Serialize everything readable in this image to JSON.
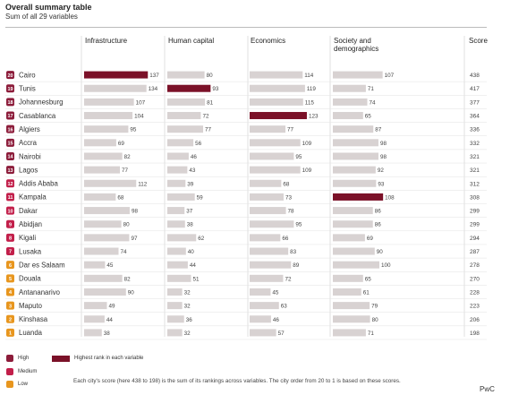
{
  "title": "Overall summary table",
  "subtitle": "Sum of all 29 variables",
  "source": "PwC",
  "note": "Each city's score (here 438 to 198) is the sum of its rankings across variables. The city order from 20 to 1 is based on these scores.",
  "legend": {
    "ranks": [
      {
        "label": "High",
        "color": "#8c1c3a"
      },
      {
        "label": "Medium",
        "color": "#c21f4a"
      },
      {
        "label": "Low",
        "color": "#e8961e"
      }
    ],
    "highlight": {
      "label": "Highest rank in each variable",
      "color": "#7b1128"
    }
  },
  "colors": {
    "bar": "#d8d2d2",
    "highlight": "#7b1128"
  },
  "chart_data": {
    "type": "table",
    "columns": [
      "Infrastructure",
      "Human capital",
      "Economics",
      "Society and demographics"
    ],
    "score_label": "Score",
    "rows": [
      {
        "rank": "20",
        "tier": "High",
        "city": "Cairo",
        "values": [
          137,
          80,
          114,
          107
        ],
        "score": 438,
        "highlight": 0
      },
      {
        "rank": "19",
        "tier": "High",
        "city": "Tunis",
        "values": [
          134,
          93,
          119,
          71
        ],
        "score": 417,
        "highlight": 1
      },
      {
        "rank": "18",
        "tier": "High",
        "city": "Johannesburg",
        "values": [
          107,
          81,
          115,
          74
        ],
        "score": 377,
        "highlight": null
      },
      {
        "rank": "17",
        "tier": "High",
        "city": "Casablanca",
        "values": [
          104,
          72,
          123,
          65
        ],
        "score": 364,
        "highlight": 2
      },
      {
        "rank": "16",
        "tier": "High",
        "city": "Algiers",
        "values": [
          95,
          77,
          77,
          87
        ],
        "score": 336,
        "highlight": null
      },
      {
        "rank": "15",
        "tier": "High",
        "city": "Accra",
        "values": [
          69,
          56,
          109,
          98
        ],
        "score": 332,
        "highlight": null
      },
      {
        "rank": "14",
        "tier": "High",
        "city": "Nairobi",
        "values": [
          82,
          46,
          95,
          98
        ],
        "score": 321,
        "highlight": null
      },
      {
        "rank": "13",
        "tier": "High",
        "city": "Lagos",
        "values": [
          77,
          43,
          109,
          92
        ],
        "score": 321,
        "highlight": null
      },
      {
        "rank": "12",
        "tier": "Medium",
        "city": "Addis Ababa",
        "values": [
          112,
          39,
          68,
          93
        ],
        "score": 312,
        "highlight": null
      },
      {
        "rank": "11",
        "tier": "Medium",
        "city": "Kampala",
        "values": [
          68,
          59,
          73,
          108
        ],
        "score": 308,
        "highlight": 3
      },
      {
        "rank": "10",
        "tier": "Medium",
        "city": "Dakar",
        "values": [
          98,
          37,
          78,
          86
        ],
        "score": 299,
        "highlight": null
      },
      {
        "rank": "9",
        "tier": "Medium",
        "city": "Abidjan",
        "values": [
          80,
          38,
          95,
          86
        ],
        "score": 299,
        "highlight": null
      },
      {
        "rank": "8",
        "tier": "Medium",
        "city": "Kigali",
        "values": [
          97,
          62,
          66,
          69
        ],
        "score": 294,
        "highlight": null
      },
      {
        "rank": "7",
        "tier": "Medium",
        "city": "Lusaka",
        "values": [
          74,
          40,
          83,
          90
        ],
        "score": 287,
        "highlight": null
      },
      {
        "rank": "6",
        "tier": "Low",
        "city": "Dar es Salaam",
        "values": [
          45,
          44,
          89,
          100
        ],
        "score": 278,
        "highlight": null
      },
      {
        "rank": "5",
        "tier": "Low",
        "city": "Douala",
        "values": [
          82,
          51,
          72,
          65
        ],
        "score": 270,
        "highlight": null
      },
      {
        "rank": "4",
        "tier": "Low",
        "city": "Antananarivo",
        "values": [
          90,
          32,
          45,
          61
        ],
        "score": 228,
        "highlight": null
      },
      {
        "rank": "3",
        "tier": "Low",
        "city": "Maputo",
        "values": [
          49,
          32,
          63,
          79
        ],
        "score": 223,
        "highlight": null
      },
      {
        "rank": "2",
        "tier": "Low",
        "city": "Kinshasa",
        "values": [
          44,
          36,
          46,
          80
        ],
        "score": 206,
        "highlight": null
      },
      {
        "rank": "1",
        "tier": "Low",
        "city": "Luanda",
        "values": [
          38,
          32,
          57,
          71
        ],
        "score": 198,
        "highlight": null
      }
    ]
  }
}
